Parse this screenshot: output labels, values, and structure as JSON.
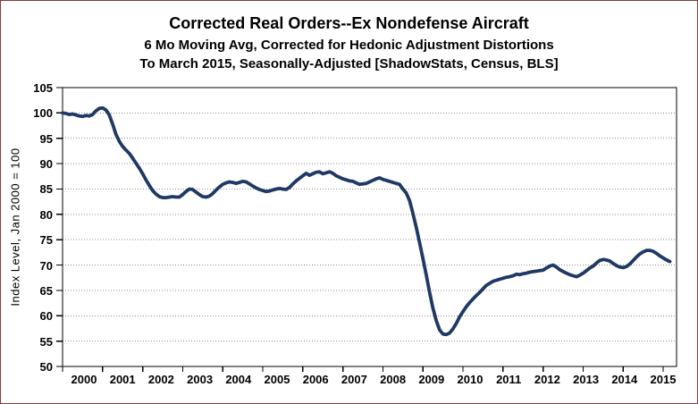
{
  "page": {
    "border_color": "#8B3A3A",
    "background": "#FFFFFF"
  },
  "chart_data": {
    "type": "line",
    "title": "Corrected Real Orders--Ex Nondefense Aircraft",
    "subtitle1": "6 Mo Moving Avg, Corrected for Hedonic Adjustment Distortions",
    "subtitle2": "To March 2015, Seasonally-Adjusted [ShadowStats, Census, BLS]",
    "ylabel": "Index Level, Jan 2000 = 100",
    "xlabel": "",
    "ylim": [
      50,
      105
    ],
    "yticks": [
      105,
      100,
      95,
      90,
      85,
      80,
      75,
      70,
      65,
      60,
      55,
      50
    ],
    "x_domain": [
      2000,
      2015.3333
    ],
    "x_tick_labels": [
      "2000",
      "2001",
      "2002",
      "2003",
      "2004",
      "2005",
      "2006",
      "2007",
      "2008",
      "2009",
      "2010",
      "2011",
      "2012",
      "2013",
      "2014",
      "2015"
    ],
    "grid": "horizontal-dotted",
    "legend": "none",
    "frequency": "monthly",
    "start": "2000-01",
    "end": "2015-03",
    "series": [
      {
        "name": "Corrected Real Orders, Ex Nondefense Aircraft (6-mo moving avg)",
        "color": "#1F3864",
        "values_by_year": {
          "2000": [
            100.0,
            99.9,
            99.7,
            99.8,
            99.6,
            99.4,
            99.3,
            99.5,
            99.4,
            99.7,
            100.4,
            100.9
          ],
          "2001": [
            101.0,
            100.6,
            99.6,
            97.8,
            95.8,
            94.4,
            93.4,
            92.7,
            92.0,
            91.1,
            90.1,
            89.1
          ],
          "2002": [
            88.0,
            86.8,
            85.7,
            84.7,
            84.0,
            83.5,
            83.3,
            83.3,
            83.4,
            83.5,
            83.4,
            83.4
          ],
          "2003": [
            83.9,
            84.5,
            85.0,
            84.9,
            84.4,
            83.9,
            83.5,
            83.4,
            83.6,
            84.1,
            84.8,
            85.4
          ],
          "2004": [
            85.9,
            86.2,
            86.4,
            86.3,
            86.1,
            86.3,
            86.5,
            86.4,
            86.0,
            85.6,
            85.2,
            84.9
          ],
          "2005": [
            84.7,
            84.5,
            84.6,
            84.8,
            85.0,
            85.1,
            85.0,
            84.9,
            85.3,
            86.0,
            86.6,
            87.1
          ],
          "2006": [
            87.6,
            88.1,
            87.7,
            88.0,
            88.3,
            88.4,
            88.0,
            88.2,
            88.4,
            88.1,
            87.6,
            87.3
          ],
          "2007": [
            87.0,
            86.8,
            86.6,
            86.5,
            86.2,
            85.9,
            86.0,
            86.1,
            86.4,
            86.7,
            87.0,
            87.2
          ],
          "2008": [
            86.9,
            86.7,
            86.5,
            86.3,
            86.1,
            85.9,
            85.0,
            84.2,
            82.7,
            80.2,
            77.4,
            74.4
          ],
          "2009": [
            71.3,
            68.0,
            64.6,
            61.5,
            59.0,
            57.2,
            56.4,
            56.3,
            56.6,
            57.4,
            58.5,
            59.8
          ],
          "2010": [
            60.8,
            61.8,
            62.6,
            63.3,
            64.0,
            64.6,
            65.3,
            66.0,
            66.4,
            66.8,
            67.0,
            67.2
          ],
          "2011": [
            67.4,
            67.6,
            67.7,
            67.9,
            68.2,
            68.1,
            68.3,
            68.4,
            68.6,
            68.7,
            68.8,
            68.9
          ],
          "2012": [
            69.0,
            69.4,
            69.8,
            70.0,
            69.6,
            69.1,
            68.7,
            68.4,
            68.1,
            67.9,
            67.7,
            68.0
          ],
          "2013": [
            68.4,
            68.9,
            69.4,
            69.8,
            70.4,
            70.9,
            71.1,
            71.0,
            70.8,
            70.3,
            69.9,
            69.6
          ],
          "2014": [
            69.5,
            69.7,
            70.2,
            70.9,
            71.6,
            72.2,
            72.6,
            72.9,
            72.9,
            72.7,
            72.3,
            71.8
          ],
          "2015": [
            71.4,
            71.0,
            70.7
          ]
        }
      }
    ]
  }
}
